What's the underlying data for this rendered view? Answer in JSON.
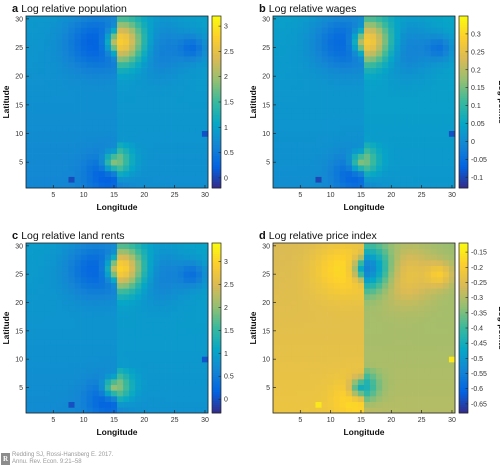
{
  "chart_data": [
    {
      "type": "heatmap",
      "letter": "a",
      "title": "Log relative population",
      "xlabel": "Longitude",
      "ylabel": "Latitude",
      "colorbar_label": "",
      "xticks": [
        5,
        10,
        15,
        20,
        25,
        30
      ],
      "yticks": [
        5,
        10,
        15,
        20,
        25,
        30
      ],
      "cbar_ticks": [
        0,
        0.5,
        1,
        1.5,
        2,
        2.5,
        3
      ],
      "cbar_ticklabels": [
        "0",
        "0.5",
        "1",
        "1.5",
        "2",
        "2.5",
        "3"
      ],
      "vmin": -0.2,
      "vmax": 3.2,
      "grid_size": 30,
      "field": {
        "west_base": 0.78,
        "east_base": 0.88,
        "north_hub": {
          "lon": 16,
          "lat": 26,
          "peak": 3.1
        },
        "south_hub": {
          "lon": 15,
          "lat": 5,
          "peak": 2.3
        },
        "dark_centers": [
          {
            "lon": 12,
            "lat": 26,
            "depth": -0.65,
            "spread": 3.5
          },
          {
            "lon": 22,
            "lat": 25,
            "depth": -0.45,
            "spread": 3.5
          },
          {
            "lon": 14,
            "lat": 3,
            "depth": -0.55,
            "spread": 2.5
          },
          {
            "lon": 28,
            "lat": 25,
            "depth": -0.5,
            "spread": 1.5
          }
        ],
        "low_spots": [
          {
            "lon": 8,
            "lat": 2,
            "value": 0.05
          },
          {
            "lon": 30,
            "lat": 10,
            "value": 0.1
          }
        ]
      }
    },
    {
      "type": "heatmap",
      "letter": "b",
      "title": "Log relative wages",
      "xlabel": "Longitude",
      "ylabel": "Latitude",
      "colorbar_label": "Log points",
      "xticks": [
        5,
        10,
        15,
        20,
        25,
        30
      ],
      "yticks": [
        5,
        10,
        15,
        20,
        25,
        30
      ],
      "cbar_ticks": [
        -0.1,
        -0.05,
        0,
        0.05,
        0.1,
        0.15,
        0.2,
        0.25,
        0.3
      ],
      "cbar_ticklabels": [
        "-0.1",
        "-0.05",
        "0",
        "0.05",
        "0.1",
        "0.15",
        "0.2",
        "0.25",
        "0.3"
      ],
      "vmin": -0.13,
      "vmax": 0.35,
      "grid_size": 30,
      "field": {
        "west_base": 0.02,
        "east_base": 0.035,
        "north_hub": {
          "lon": 16,
          "lat": 26,
          "peak": 0.33
        },
        "south_hub": {
          "lon": 15,
          "lat": 5,
          "peak": 0.22
        },
        "dark_centers": [
          {
            "lon": 12,
            "lat": 26,
            "depth": -0.09,
            "spread": 3.5
          },
          {
            "lon": 22,
            "lat": 25,
            "depth": -0.07,
            "spread": 3.5
          },
          {
            "lon": 14,
            "lat": 3,
            "depth": -0.08,
            "spread": 2.5
          },
          {
            "lon": 28,
            "lat": 25,
            "depth": -0.07,
            "spread": 1.5
          }
        ],
        "low_spots": [
          {
            "lon": 8,
            "lat": 2,
            "value": -0.1
          },
          {
            "lon": 30,
            "lat": 10,
            "value": -0.09
          }
        ]
      }
    },
    {
      "type": "heatmap",
      "letter": "c",
      "title": "Log relative land rents",
      "xlabel": "Longitude",
      "ylabel": "Latitude",
      "colorbar_label": "",
      "xticks": [
        5,
        10,
        15,
        20,
        25,
        30
      ],
      "yticks": [
        5,
        10,
        15,
        20,
        25,
        30
      ],
      "cbar_ticks": [
        0,
        0.5,
        1,
        1.5,
        2,
        2.5,
        3
      ],
      "cbar_ticklabels": [
        "0",
        "0.5",
        "1",
        "1.5",
        "2",
        "2.5",
        "3"
      ],
      "vmin": -0.3,
      "vmax": 3.4,
      "grid_size": 30,
      "field": {
        "west_base": 0.82,
        "east_base": 0.92,
        "north_hub": {
          "lon": 16,
          "lat": 26,
          "peak": 3.35
        },
        "south_hub": {
          "lon": 15,
          "lat": 5,
          "peak": 2.5
        },
        "dark_centers": [
          {
            "lon": 12,
            "lat": 26,
            "depth": -0.7,
            "spread": 3.5
          },
          {
            "lon": 22,
            "lat": 25,
            "depth": -0.5,
            "spread": 3.5
          },
          {
            "lon": 14,
            "lat": 3,
            "depth": -0.6,
            "spread": 2.5
          },
          {
            "lon": 28,
            "lat": 25,
            "depth": -0.55,
            "spread": 1.5
          }
        ],
        "low_spots": [
          {
            "lon": 8,
            "lat": 2,
            "value": 0.0
          },
          {
            "lon": 30,
            "lat": 10,
            "value": 0.05
          }
        ]
      }
    },
    {
      "type": "heatmap",
      "letter": "d",
      "title": "Log relative price index",
      "xlabel": "Longitude",
      "ylabel": "Latitude",
      "colorbar_label": "Log points",
      "xticks": [
        5,
        10,
        15,
        20,
        25,
        30
      ],
      "yticks": [
        5,
        10,
        15,
        20,
        25,
        30
      ],
      "cbar_ticks": [
        -0.65,
        -0.6,
        -0.55,
        -0.5,
        -0.45,
        -0.4,
        -0.35,
        -0.3,
        -0.25,
        -0.2,
        -0.15
      ],
      "cbar_ticklabels": [
        "-0.65",
        "-0.6",
        "-0.55",
        "-0.5",
        "-0.45",
        "-0.4",
        "-0.35",
        "-0.3",
        "-0.25",
        "-0.2",
        "-0.15"
      ],
      "vmin": -0.68,
      "vmax": -0.12,
      "grid_size": 30,
      "field": {
        "west_base": -0.24,
        "east_base": -0.31,
        "north_hub": {
          "lon": 16,
          "lat": 26,
          "peak": -0.6
        },
        "south_hub": {
          "lon": 15,
          "lat": 5,
          "peak": -0.5
        },
        "dark_centers": [
          {
            "lon": 12,
            "lat": 26,
            "depth": 0.08,
            "spread": 3.5
          },
          {
            "lon": 22,
            "lat": 25,
            "depth": 0.1,
            "spread": 3.5
          },
          {
            "lon": 14,
            "lat": 3,
            "depth": 0.06,
            "spread": 2.5
          },
          {
            "lon": 28,
            "lat": 25,
            "depth": 0.1,
            "spread": 1.5
          }
        ],
        "low_spots": [
          {
            "lon": 8,
            "lat": 2,
            "value": -0.15
          },
          {
            "lon": 30,
            "lat": 10,
            "value": -0.15
          }
        ]
      }
    }
  ],
  "colormap": [
    "#352a87",
    "#0363e1",
    "#1485d4",
    "#06a7c6",
    "#38b99e",
    "#92bf73",
    "#d9ba56",
    "#fcce2e",
    "#f9fb0e"
  ],
  "credit": {
    "logo": "R",
    "line1": "Redding SJ, Rossi-Hansberg E. 2017.",
    "line2": "Annu. Rev. Econ. 9:21–58"
  }
}
